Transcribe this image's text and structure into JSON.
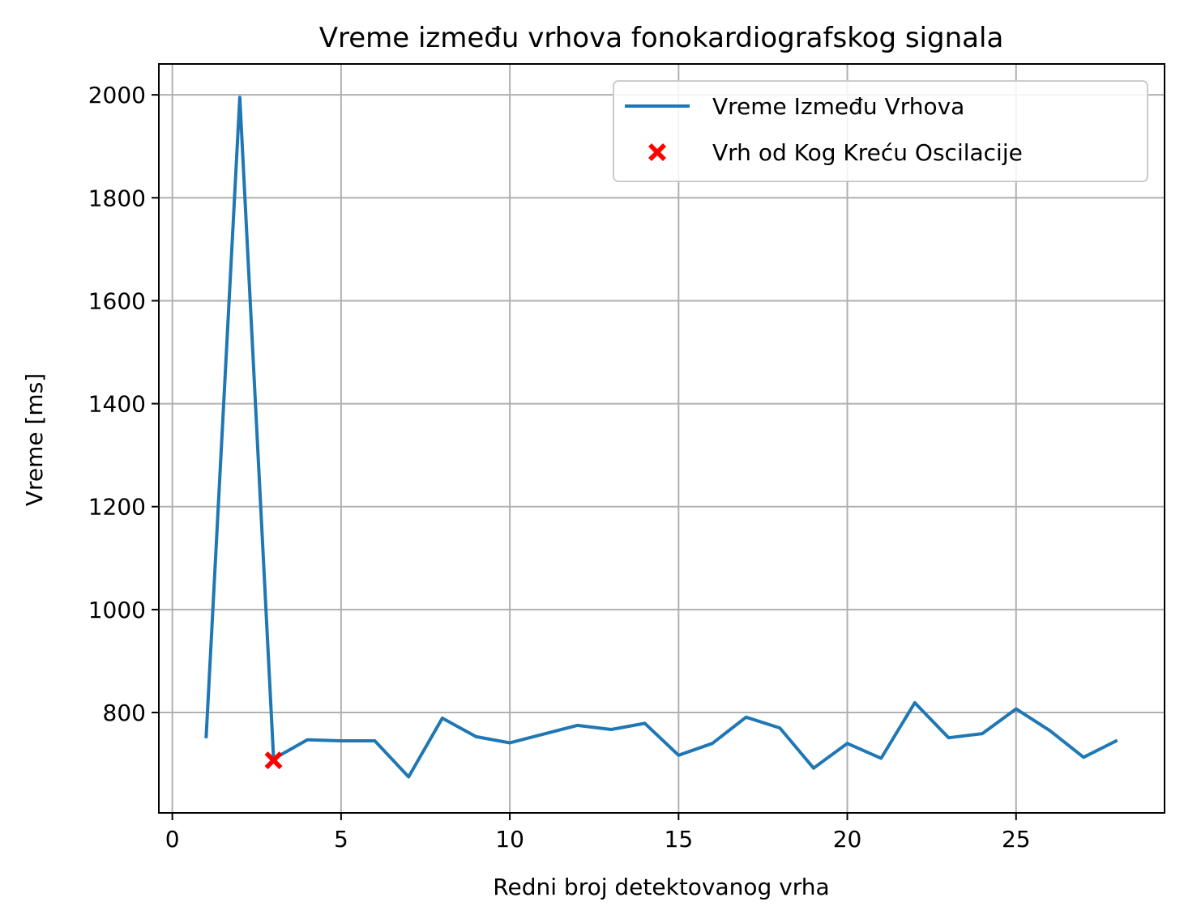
{
  "chart_data": {
    "type": "line",
    "title": "Vreme između vrhova fonokardiografskog signala",
    "xlabel": "Redni broj detektovanog vrha",
    "ylabel": "Vreme [ms]",
    "xlim": [
      -0.4,
      29.4
    ],
    "ylim": [
      605,
      2060
    ],
    "xticks": [
      0,
      5,
      10,
      15,
      20,
      25
    ],
    "yticks": [
      800,
      1000,
      1200,
      1400,
      1600,
      1800,
      2000
    ],
    "grid": true,
    "legend_position": "upper right",
    "series": [
      {
        "name": "Vreme Između Vrhova",
        "type": "line",
        "color": "#1f77b4",
        "x": [
          1,
          2,
          3,
          4,
          5,
          6,
          7,
          8,
          9,
          10,
          11,
          12,
          13,
          14,
          15,
          16,
          17,
          18,
          19,
          20,
          21,
          22,
          23,
          24,
          25,
          26,
          27,
          28
        ],
        "y": [
          750,
          1995,
          710,
          747,
          745,
          745,
          675,
          789,
          753,
          741,
          758,
          775,
          767,
          779,
          717,
          740,
          791,
          770,
          692,
          740,
          711,
          819,
          751,
          759,
          807,
          765,
          713,
          746
        ]
      },
      {
        "name": "Vrh od Kog Kreću Oscilacije",
        "type": "scatter",
        "marker": "X",
        "color": "#ff0000",
        "x": [
          3
        ],
        "y": [
          707
        ]
      }
    ]
  }
}
